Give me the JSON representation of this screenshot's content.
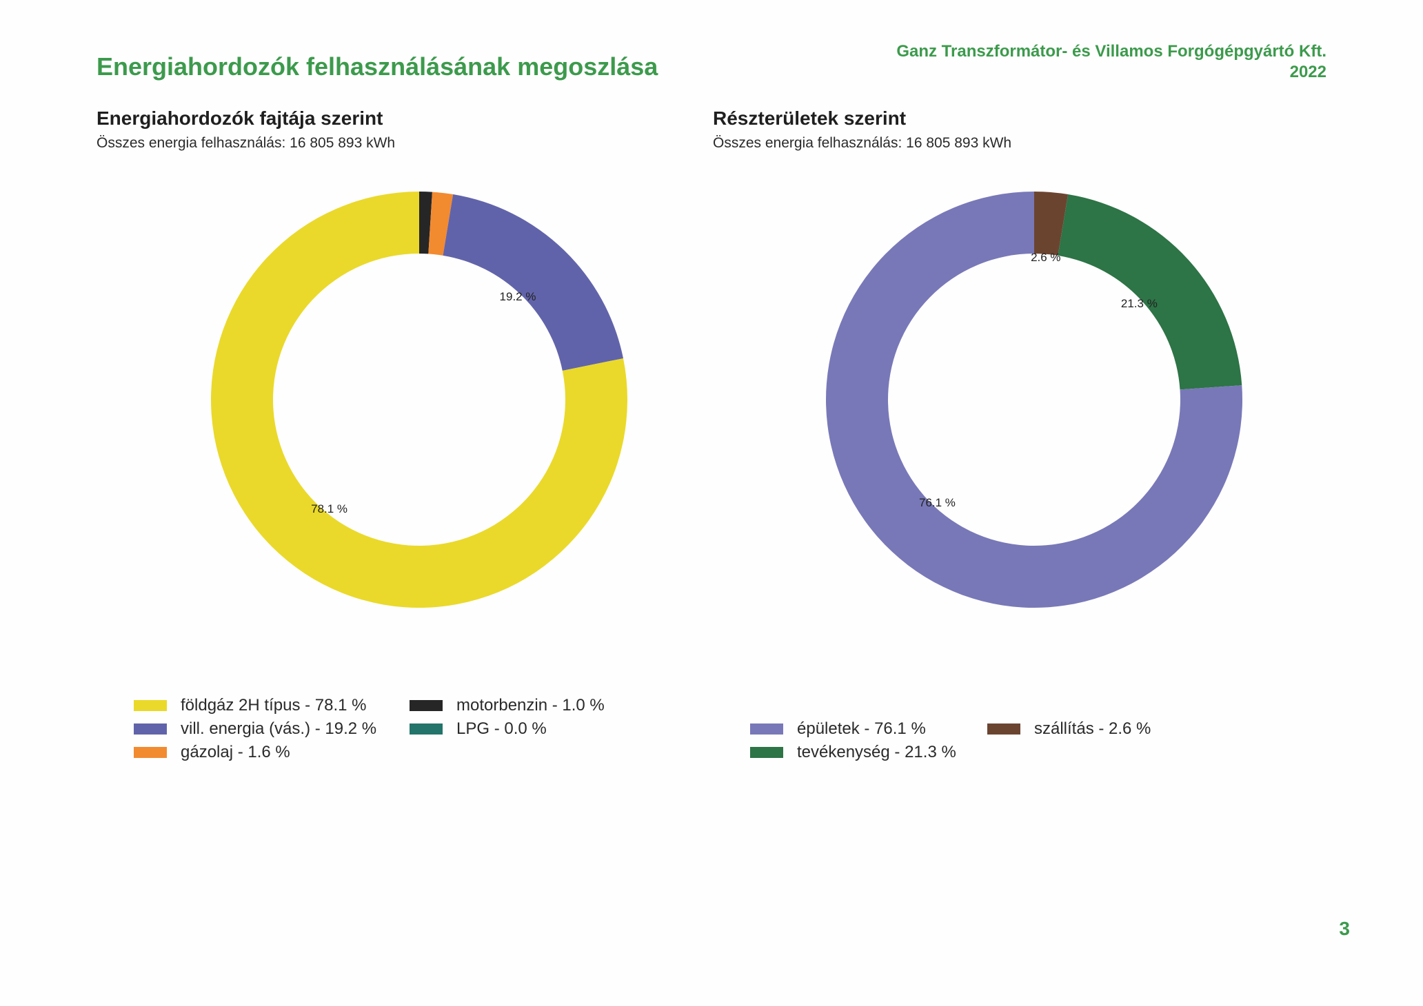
{
  "header": {
    "title": "Energiahordozók felhasználásának megoszlása",
    "company": "Ganz Transzformátor- és Villamos Forgógépgyártó Kft.",
    "year": "2022"
  },
  "page_number": "3",
  "chart_data": [
    {
      "type": "pie",
      "title": "Energiahordozók fajtája szerint",
      "subtitle": "Összes energia felhasználás: 16 805 893 kWh",
      "slices": [
        {
          "name": "motorbenzin",
          "value": 1.0,
          "color": "#262626",
          "label": "",
          "legend": "motorbenzin - 1.0 %"
        },
        {
          "name": "gázolaj",
          "value": 1.6,
          "color": "#f28a30",
          "label": "",
          "legend": "gázolaj - 1.6 %"
        },
        {
          "name": "vill. energia (vás.)",
          "value": 19.2,
          "color": "#6163aa",
          "label": "19.2 %",
          "legend": "vill. energia (vás.) - 19.2 %"
        },
        {
          "name": "LPG",
          "value": 0.0,
          "color": "#23746a",
          "label": "",
          "legend": "LPG - 0.0 %"
        },
        {
          "name": "földgáz 2H típus",
          "value": 78.1,
          "color": "#ead92a",
          "label": "78.1 %",
          "legend": "földgáz 2H típus - 78.1 %"
        }
      ]
    },
    {
      "type": "pie",
      "title": "Részterületek szerint",
      "subtitle": "Összes energia felhasználás: 16 805 893 kWh",
      "slices": [
        {
          "name": "szállítás",
          "value": 2.6,
          "color": "#6b4430",
          "label": "2.6 %",
          "legend": "szállítás - 2.6 %"
        },
        {
          "name": "tevékenység",
          "value": 21.3,
          "color": "#2d7446",
          "label": "21.3 %",
          "legend": "tevékenység - 21.3 %"
        },
        {
          "name": "épületek",
          "value": 76.1,
          "color": "#7878b8",
          "label": "76.1 %",
          "legend": "épületek - 76.1 %"
        }
      ]
    }
  ]
}
